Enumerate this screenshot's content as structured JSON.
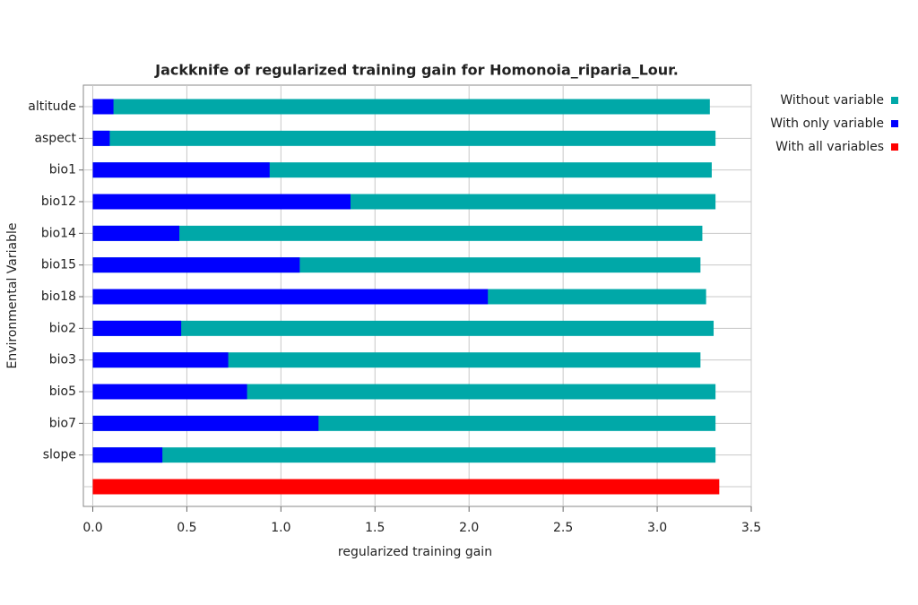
{
  "chart_data": {
    "type": "bar",
    "orientation": "horizontal",
    "title": "Jackknife of regularized training gain for Homonoia_riparia_Lour.",
    "xlabel": "regularized training gain",
    "ylabel": "Environmental Variable",
    "categories": [
      "altitude",
      "aspect",
      "bio1",
      "bio12",
      "bio14",
      "bio15",
      "bio18",
      "bio2",
      "bio3",
      "bio5",
      "bio7",
      "slope",
      null
    ],
    "series": [
      {
        "name": "Without variable",
        "color": "#00a8a8",
        "values": [
          3.28,
          3.31,
          3.29,
          3.31,
          3.24,
          3.23,
          3.26,
          3.3,
          3.23,
          3.31,
          3.31,
          3.31,
          null
        ]
      },
      {
        "name": "With only variable",
        "color": "#0000ff",
        "values": [
          0.11,
          0.09,
          0.94,
          1.37,
          0.46,
          1.1,
          2.1,
          0.47,
          0.72,
          0.82,
          1.2,
          0.37,
          null
        ]
      },
      {
        "name": "With all variables",
        "color": "#ff0000",
        "values": [
          null,
          null,
          null,
          null,
          null,
          null,
          null,
          null,
          null,
          null,
          null,
          null,
          3.33
        ]
      }
    ],
    "xlim": [
      -0.05,
      3.5
    ],
    "xticks": [
      {
        "value": 0,
        "label": "0.0"
      },
      0.5,
      {
        "value": 1,
        "label": "1.0"
      },
      1.5,
      {
        "value": 2,
        "label": "2.0"
      },
      2.5,
      {
        "value": 3,
        "label": "3.0"
      },
      3.5
    ],
    "grid": true,
    "legend": "right"
  }
}
